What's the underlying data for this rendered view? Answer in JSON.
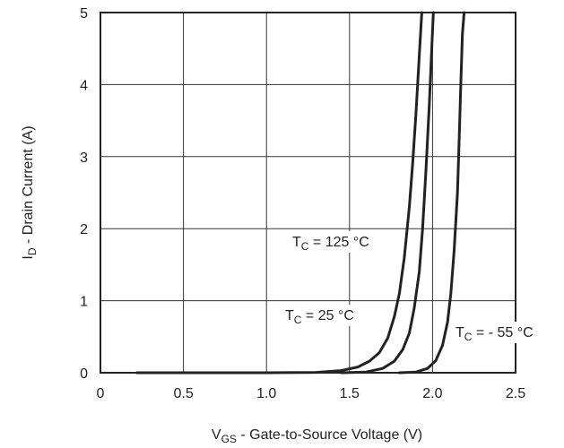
{
  "chart_data": {
    "type": "line",
    "title": "",
    "xlabel": {
      "main": "V",
      "sub": "GS",
      "rest": " - Gate-to-Source Voltage (V)"
    },
    "ylabel": {
      "main": "I",
      "sub": "D",
      "rest": " - Drain Current (A)"
    },
    "xlim": [
      0,
      2.5
    ],
    "ylim": [
      0,
      5
    ],
    "x_ticks": [
      {
        "value": 0,
        "label": "0"
      },
      {
        "value": 0.5,
        "label": "0.5"
      },
      {
        "value": 1.0,
        "label": "1.0"
      },
      {
        "value": 1.5,
        "label": "1.5"
      },
      {
        "value": 2.0,
        "label": "2.0"
      },
      {
        "value": 2.5,
        "label": "2.5"
      }
    ],
    "y_ticks": [
      {
        "value": 0,
        "label": "0"
      },
      {
        "value": 1,
        "label": "1"
      },
      {
        "value": 2,
        "label": "2"
      },
      {
        "value": 3,
        "label": "3"
      },
      {
        "value": 4,
        "label": "4"
      },
      {
        "value": 5,
        "label": "5"
      }
    ],
    "grid": true,
    "series": [
      {
        "label": {
          "main": "T",
          "sub": "C",
          "rest": " = 125 °C"
        },
        "points": [
          [
            0.22,
            0.0
          ],
          [
            1.0,
            0.0
          ],
          [
            1.3,
            0.005
          ],
          [
            1.45,
            0.03
          ],
          [
            1.55,
            0.08
          ],
          [
            1.62,
            0.16
          ],
          [
            1.68,
            0.28
          ],
          [
            1.73,
            0.48
          ],
          [
            1.77,
            0.78
          ],
          [
            1.8,
            1.1
          ],
          [
            1.83,
            1.6
          ],
          [
            1.86,
            2.3
          ],
          [
            1.88,
            2.9
          ],
          [
            1.9,
            3.6
          ],
          [
            1.92,
            4.4
          ],
          [
            1.935,
            5.0
          ]
        ]
      },
      {
        "label": {
          "main": "T",
          "sub": "C",
          "rest": " = 25 °C"
        },
        "points": [
          [
            1.45,
            0.0
          ],
          [
            1.6,
            0.01
          ],
          [
            1.7,
            0.06
          ],
          [
            1.77,
            0.16
          ],
          [
            1.82,
            0.32
          ],
          [
            1.86,
            0.55
          ],
          [
            1.89,
            0.9
          ],
          [
            1.92,
            1.4
          ],
          [
            1.94,
            2.0
          ],
          [
            1.96,
            2.8
          ],
          [
            1.98,
            3.7
          ],
          [
            1.995,
            4.5
          ],
          [
            2.005,
            5.0
          ]
        ]
      },
      {
        "label": {
          "main": "T",
          "sub": "C",
          "rest": " = - 55 °C"
        },
        "points": [
          [
            1.8,
            0.0
          ],
          [
            1.9,
            0.01
          ],
          [
            1.97,
            0.06
          ],
          [
            2.02,
            0.17
          ],
          [
            2.06,
            0.38
          ],
          [
            2.09,
            0.7
          ],
          [
            2.11,
            1.1
          ],
          [
            2.13,
            1.7
          ],
          [
            2.15,
            2.5
          ],
          [
            2.16,
            3.2
          ],
          [
            2.17,
            4.0
          ],
          [
            2.18,
            4.7
          ],
          [
            2.19,
            5.0
          ]
        ]
      }
    ]
  }
}
